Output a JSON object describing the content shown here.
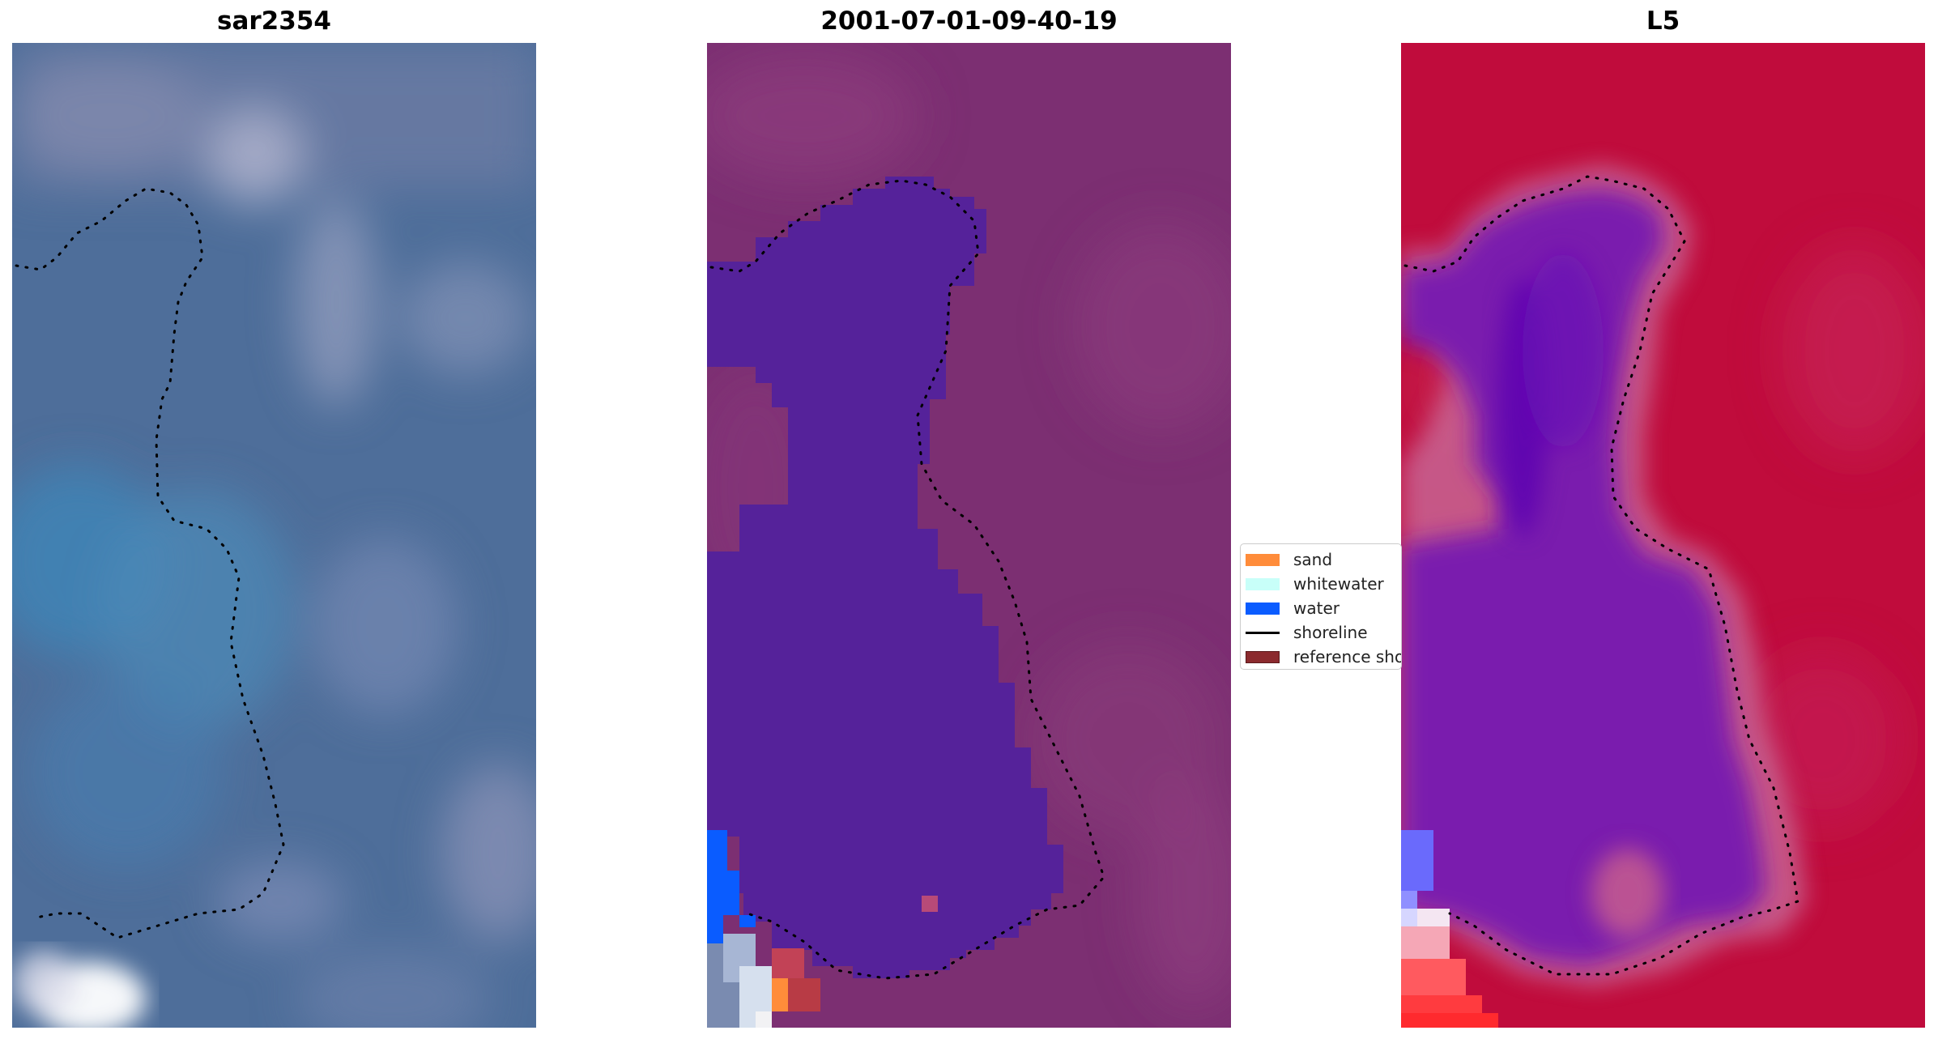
{
  "panels": [
    {
      "title": "sar2354",
      "base": "#4d6f9c",
      "name": "sar-image"
    },
    {
      "title": "2001-07-01-09-40-19",
      "base": "#7a2f72",
      "name": "classified-image"
    },
    {
      "title": "L5",
      "base": "#c0103f",
      "name": "mndwi-image"
    }
  ],
  "legend": {
    "items": [
      {
        "label": "sand",
        "color": "#ff8c3a",
        "kind": "patch"
      },
      {
        "label": "whitewater",
        "color": "#c8fff9",
        "kind": "patch"
      },
      {
        "label": "water",
        "color": "#0a5cff",
        "kind": "patch"
      },
      {
        "label": "shoreline",
        "color": "#000000",
        "kind": "line"
      },
      {
        "label": "reference shoreline",
        "color": "#8b2a2e",
        "kind": "patch"
      }
    ]
  },
  "colors": {
    "lake_class": "#55229a",
    "lake_index": "#7a1fae",
    "shoreline_dots": "#000000"
  }
}
